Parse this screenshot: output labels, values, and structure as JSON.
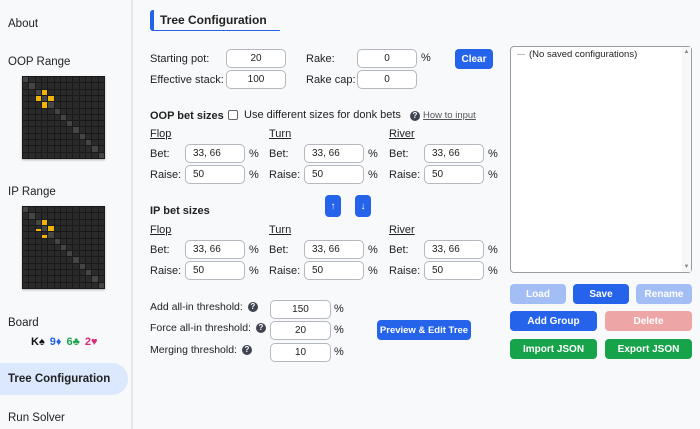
{
  "sidebar": {
    "items": [
      {
        "label": "About"
      },
      {
        "label": "OOP Range"
      },
      {
        "label": "IP Range"
      },
      {
        "label": "Board"
      },
      {
        "label": "Tree Configuration",
        "selected": true
      },
      {
        "label": "Run Solver"
      }
    ],
    "board": [
      {
        "rank": "K",
        "suit": "♠",
        "color": "#111111"
      },
      {
        "rank": "9",
        "suit": "♦",
        "color": "#2563eb"
      },
      {
        "rank": "6",
        "suit": "♣",
        "color": "#16a34a"
      },
      {
        "rank": "2",
        "suit": "♥",
        "color": "#db2777"
      }
    ]
  },
  "main": {
    "title": "Tree Configuration",
    "starting_pot": {
      "label": "Starting pot:",
      "value": "20"
    },
    "effective_stack": {
      "label": "Effective stack:",
      "value": "100"
    },
    "rake": {
      "label": "Rake:",
      "value": "0",
      "unit": "%"
    },
    "rake_cap": {
      "label": "Rake cap:",
      "value": "0"
    },
    "clear": "Clear",
    "oop": {
      "title": "OOP bet sizes",
      "donk_label": "Use different sizes for donk bets",
      "donk_checked": false,
      "help": "How to input",
      "streets": [
        {
          "name": "Flop",
          "bet": "33, 66",
          "raise": "50"
        },
        {
          "name": "Turn",
          "bet": "33, 66",
          "raise": "50"
        },
        {
          "name": "River",
          "bet": "33, 66",
          "raise": "50"
        }
      ]
    },
    "ip": {
      "title": "IP bet sizes",
      "streets": [
        {
          "name": "Flop",
          "bet": "33, 66",
          "raise": "50"
        },
        {
          "name": "Turn",
          "bet": "33, 66",
          "raise": "50"
        },
        {
          "name": "River",
          "bet": "33, 66",
          "raise": "50"
        }
      ]
    },
    "bet_label": "Bet:",
    "raise_label": "Raise:",
    "pct": "%",
    "swap_up": "↑",
    "swap_down": "↓",
    "add_allin": {
      "label": "Add all-in threshold:",
      "value": "150"
    },
    "force_allin": {
      "label": "Force all-in threshold:",
      "value": "20"
    },
    "merging": {
      "label": "Merging threshold:",
      "value": "10"
    },
    "preview": "Preview & Edit Tree"
  },
  "saved": {
    "empty": "(No saved configurations)",
    "buttons": {
      "load": "Load",
      "save": "Save",
      "rename": "Rename",
      "add_group": "Add Group",
      "delete": "Delete",
      "import": "Import JSON",
      "export": "Export JSON"
    }
  }
}
